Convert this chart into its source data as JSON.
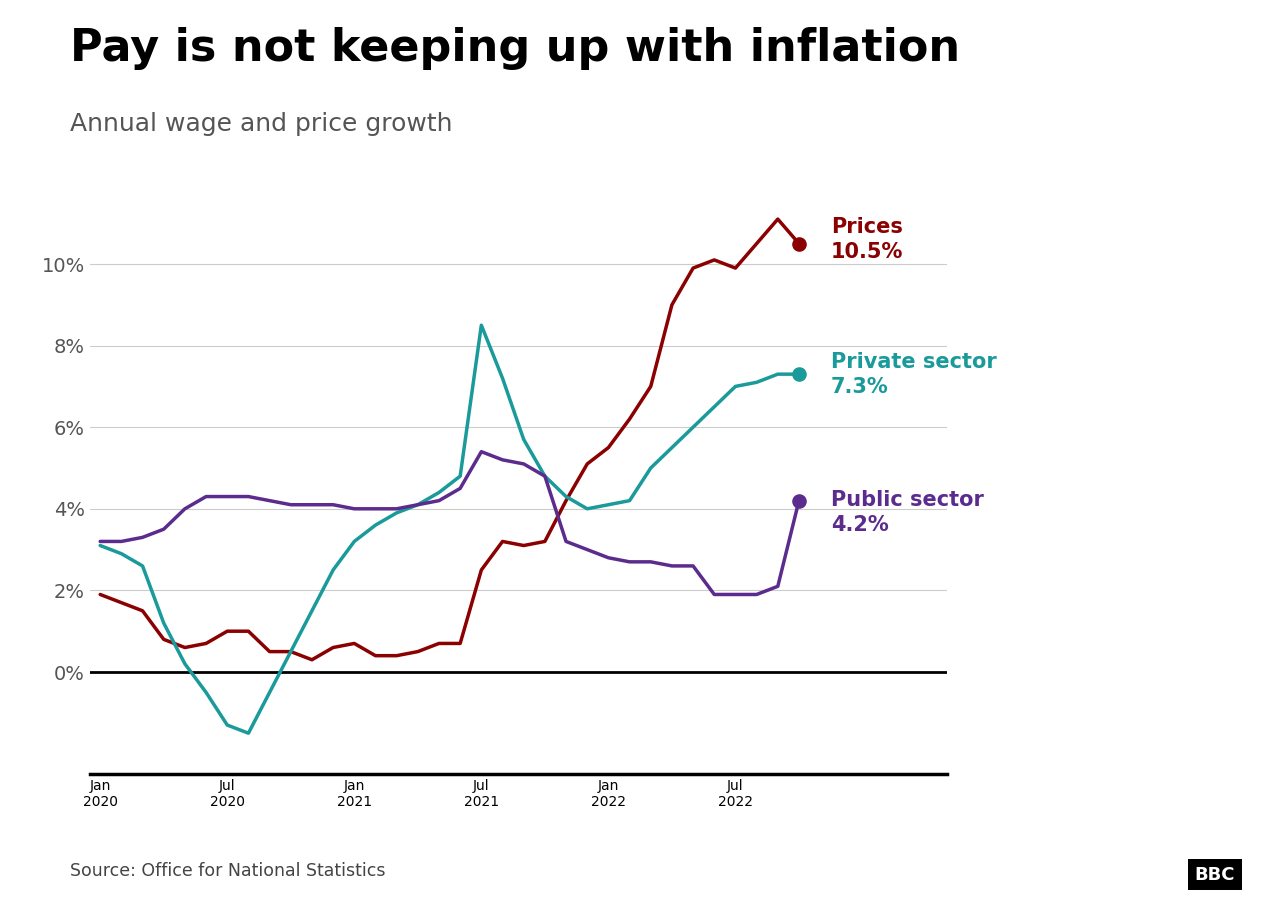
{
  "title": "Pay is not keeping up with inflation",
  "subtitle": "Annual wage and price growth",
  "source": "Source: Office for National Statistics",
  "background_color": "#ffffff",
  "title_fontsize": 32,
  "subtitle_fontsize": 18,
  "prices_color": "#8B0000",
  "private_color": "#1a9a9a",
  "public_color": "#5B2C8D",
  "prices_label": "Prices\n10.5%",
  "private_label": "Private sector\n7.3%",
  "public_label": "Public sector\n4.2%",
  "ylim": [
    -2.5,
    12.5
  ],
  "yticks": [
    0,
    2,
    4,
    6,
    8,
    10
  ],
  "note": "Monthly data Jan 2020 (x=0) to Oct 2022 (x=33). x=6 is Jul 2020, x=12 is Jan 2021, x=18 is Jul 2021, x=24 is Jan 2022, x=30 is Jul 2022.",
  "prices_y": [
    1.9,
    1.7,
    1.5,
    0.8,
    0.6,
    0.7,
    1.0,
    1.0,
    0.5,
    0.5,
    0.3,
    0.6,
    0.7,
    0.4,
    0.4,
    0.5,
    0.7,
    0.7,
    2.5,
    3.2,
    3.1,
    3.2,
    4.2,
    5.1,
    5.5,
    6.2,
    7.0,
    9.0,
    9.9,
    10.1,
    9.9,
    10.5,
    11.1,
    10.5
  ],
  "private_y": [
    3.1,
    2.9,
    2.6,
    1.2,
    0.2,
    -0.5,
    -1.3,
    -1.5,
    -0.5,
    0.5,
    1.5,
    2.5,
    3.2,
    3.6,
    3.9,
    4.1,
    4.4,
    4.8,
    8.5,
    7.2,
    5.7,
    4.8,
    4.3,
    4.0,
    4.1,
    4.2,
    5.0,
    5.5,
    6.0,
    6.5,
    7.0,
    7.1,
    7.3,
    7.3
  ],
  "public_y": [
    3.2,
    3.2,
    3.3,
    3.5,
    4.0,
    4.3,
    4.3,
    4.3,
    4.2,
    4.1,
    4.1,
    4.1,
    4.0,
    4.0,
    4.0,
    4.1,
    4.2,
    4.5,
    5.4,
    5.2,
    5.1,
    4.8,
    3.2,
    3.0,
    2.8,
    2.7,
    2.7,
    2.6,
    2.6,
    1.9,
    1.9,
    1.9,
    2.1,
    4.2
  ],
  "xtick_positions": [
    0,
    6,
    12,
    18,
    24,
    30
  ],
  "xtick_labels": [
    "Jan\n2020",
    "Jul\n2020",
    "Jan\n2021",
    "Jul\n2021",
    "Jan\n2022",
    "Jul\n2022"
  ]
}
